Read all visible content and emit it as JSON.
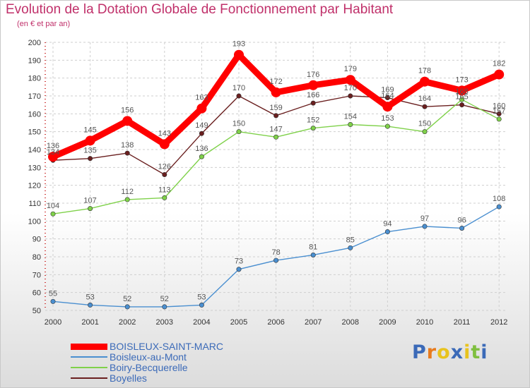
{
  "chart_data": {
    "type": "line",
    "title": "Evolution de la Dotation Globale de Fonctionnement par Habitant",
    "subtitle": "(en € et par an)",
    "xlabel": "",
    "ylabel": "",
    "categories": [
      "2000",
      "2001",
      "2002",
      "2003",
      "2004",
      "2005",
      "2006",
      "2007",
      "2008",
      "2009",
      "2010",
      "2011",
      "2012"
    ],
    "ylim": [
      50,
      200
    ],
    "yticks": [
      50,
      60,
      70,
      80,
      90,
      100,
      110,
      120,
      130,
      140,
      150,
      160,
      170,
      180,
      190,
      200
    ],
    "grid": true,
    "series": [
      {
        "name": "BOISLEUX-SAINT-MARC",
        "color": "#ff0000",
        "values": [
          136,
          145,
          156,
          143,
          163,
          193,
          172,
          176,
          179,
          164,
          178,
          173,
          182
        ]
      },
      {
        "name": "Boisleux-au-Mont",
        "color": "#4a8fd0",
        "values": [
          55,
          53,
          52,
          52,
          53,
          73,
          78,
          81,
          85,
          94,
          97,
          96,
          108
        ]
      },
      {
        "name": "Boiry-Becquerelle",
        "color": "#7fd14a",
        "values": [
          104,
          107,
          112,
          113,
          136,
          150,
          147,
          152,
          154,
          153,
          150,
          168,
          157
        ]
      },
      {
        "name": "Boyelles",
        "color": "#6a1f1f",
        "values": [
          134,
          135,
          138,
          126,
          149,
          170,
          159,
          166,
          170,
          169,
          164,
          165,
          160
        ]
      }
    ]
  },
  "brand": {
    "letters": [
      "P",
      "r",
      "o",
      "x",
      "i",
      "t",
      "i"
    ],
    "colors": [
      "#3b6ab8",
      "#e87b1e",
      "#e8c31e",
      "#3b6ab8",
      "#e8c31e",
      "#7fbf3f",
      "#3b6ab8"
    ]
  }
}
